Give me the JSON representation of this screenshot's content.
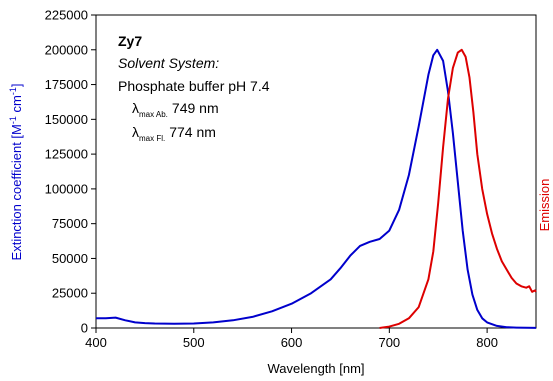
{
  "chart_data": {
    "type": "line",
    "xlabel": "Wavelength [nm]",
    "ylabel_prefix": "Extinction coefficient [M",
    "ylabel_sup1": "-1",
    "ylabel_mid": " cm",
    "ylabel_sup2": "-1",
    "ylabel_suffix": "]",
    "ylabel_right": "Emission",
    "xlim": [
      400,
      850
    ],
    "ylim": [
      0,
      225000
    ],
    "xticks": [
      "400",
      "500",
      "600",
      "700",
      "800"
    ],
    "yticks": [
      "0",
      "25000",
      "50000",
      "75000",
      "100000",
      "125000",
      "150000",
      "175000",
      "200000",
      "225000"
    ],
    "grid": false,
    "colors": {
      "absorption": "#0000cc",
      "emission": "#dd0000"
    },
    "annotation": {
      "compound": "Zy7",
      "solvent_label": "Solvent System:",
      "solvent": "Phosphate buffer pH 7.4",
      "lambda_ab_symbol": "λ",
      "lambda_ab_sub": "max Ab.",
      "lambda_ab_value": "749 nm",
      "lambda_fl_symbol": "λ",
      "lambda_fl_sub": "max Fl.",
      "lambda_fl_value": "774 nm"
    },
    "series": [
      {
        "key": "absorption",
        "x": [
          400,
          410,
          420,
          430,
          440,
          450,
          460,
          480,
          500,
          520,
          540,
          560,
          580,
          600,
          620,
          640,
          650,
          660,
          670,
          680,
          690,
          700,
          710,
          720,
          730,
          740,
          745,
          749,
          755,
          760,
          765,
          770,
          775,
          780,
          785,
          790,
          795,
          800,
          810,
          820,
          830,
          840,
          850
        ],
        "y": [
          7000,
          7000,
          7500,
          5500,
          4000,
          3500,
          3200,
          3000,
          3200,
          4000,
          5500,
          8000,
          12000,
          17500,
          25000,
          35000,
          43000,
          52000,
          59000,
          62000,
          64000,
          70000,
          85000,
          110000,
          145000,
          182000,
          196000,
          200000,
          192000,
          170000,
          140000,
          105000,
          70000,
          42000,
          24000,
          13000,
          7000,
          4000,
          1500,
          600,
          300,
          150,
          100
        ]
      },
      {
        "key": "emission",
        "x": [
          690,
          700,
          710,
          720,
          730,
          740,
          745,
          750,
          755,
          760,
          765,
          770,
          774,
          778,
          782,
          786,
          790,
          795,
          800,
          805,
          810,
          815,
          820,
          825,
          830,
          835,
          840,
          843,
          846,
          849,
          850
        ],
        "y": [
          0,
          1000,
          3000,
          7000,
          15000,
          35000,
          55000,
          90000,
          130000,
          165000,
          187000,
          198000,
          200000,
          195000,
          180000,
          155000,
          125000,
          100000,
          82000,
          68000,
          57000,
          48000,
          42000,
          36000,
          32000,
          30000,
          29000,
          30000,
          26000,
          27000,
          26000
        ]
      }
    ]
  }
}
